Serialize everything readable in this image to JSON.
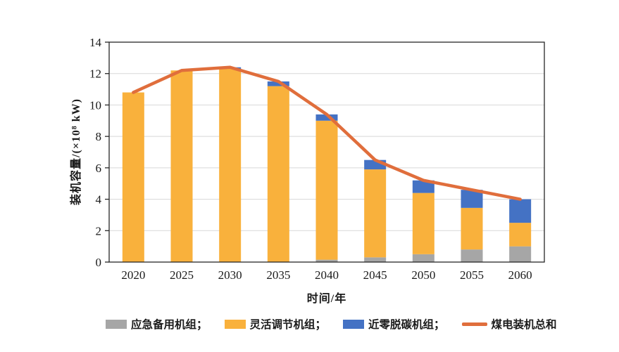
{
  "chart_data": {
    "type": "bar",
    "subtype": "stacked-bars-with-total-line",
    "title": "",
    "xlabel": "时间/年",
    "ylabel": "装机容量/(×10⁸ kW)",
    "categories": [
      "2020",
      "2025",
      "2030",
      "2035",
      "2040",
      "2045",
      "2050",
      "2055",
      "2060"
    ],
    "series": [
      {
        "name": "应急备用机组",
        "kind": "bar",
        "color": "#A6A6A6",
        "values": [
          0,
          0,
          0,
          0,
          0.15,
          0.3,
          0.5,
          0.8,
          1.0
        ]
      },
      {
        "name": "灵活调节机组",
        "kind": "bar",
        "color": "#F9B13C",
        "values": [
          10.8,
          12.2,
          12.3,
          11.2,
          8.85,
          5.6,
          3.9,
          2.65,
          1.5
        ]
      },
      {
        "name": "近零脱碳机组",
        "kind": "bar",
        "color": "#4472C4",
        "values": [
          0,
          0,
          0.1,
          0.3,
          0.4,
          0.6,
          0.8,
          1.15,
          1.5
        ]
      },
      {
        "name": "煤电装机总和",
        "kind": "line",
        "color": "#E06E3C",
        "values": [
          10.8,
          12.2,
          12.4,
          11.5,
          9.4,
          6.5,
          5.2,
          4.6,
          4.0
        ]
      }
    ],
    "stacked": true,
    "ylim": [
      0,
      14
    ],
    "ytick_step": 2,
    "yticks": [
      "0",
      "2",
      "4",
      "6",
      "8",
      "10",
      "12",
      "14"
    ],
    "grid": "horizontal",
    "legend_position": "bottom",
    "legend": [
      {
        "label": "应急备用机组；",
        "swatch": "rect",
        "color": "#A6A6A6"
      },
      {
        "label": "灵活调节机组；",
        "swatch": "rect",
        "color": "#F9B13C"
      },
      {
        "label": "近零脱碳机组；",
        "swatch": "rect",
        "color": "#4472C4"
      },
      {
        "label": "煤电装机总和",
        "swatch": "line",
        "color": "#E06E3C"
      }
    ],
    "colors": {
      "grid": "#D8D8D8",
      "axis": "#262626",
      "text": "#1a1a1a"
    }
  }
}
